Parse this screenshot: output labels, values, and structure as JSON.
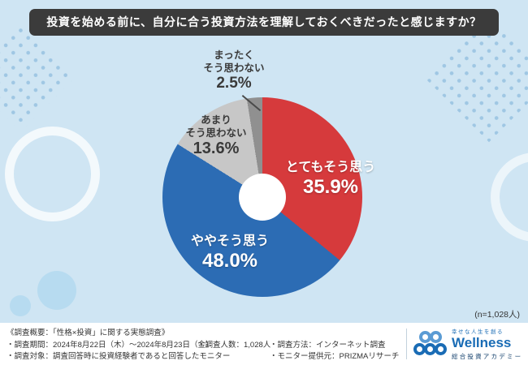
{
  "title": "投資を始める前に、自分に合う投資方法を理解しておくべきだったと感じますか？",
  "chart_data": {
    "type": "pie",
    "donut": true,
    "start_angle_deg": 0,
    "direction": "clockwise",
    "labels_on_chart": true,
    "title": "投資を始める前に、自分に合う投資方法を理解しておくべきだったと感じますか？",
    "categories": [
      "とてもそう思う",
      "ややそう思う",
      "あまりそう思わない",
      "まったくそう思わない"
    ],
    "values": [
      35.9,
      48.0,
      13.6,
      2.5
    ],
    "sample_note": "(n=1,028人)",
    "slices": [
      {
        "label": "とてもそう思う",
        "value": 35.9,
        "display": "35.9%",
        "color": "#d63a3c",
        "label_color": "#ffffff"
      },
      {
        "label": "ややそう思う",
        "value": 48.0,
        "display": "48.0%",
        "color": "#2c6cb4",
        "label_color": "#ffffff"
      },
      {
        "label": "あまり\nそう思わない",
        "value": 13.6,
        "display": "13.6%",
        "color": "#c7c7c7",
        "label_color": "#3a3a3a"
      },
      {
        "label": "まったく\nそう思わない",
        "value": 2.5,
        "display": "2.5%",
        "color": "#909090",
        "label_color": "#3a3a3a"
      }
    ]
  },
  "footer": {
    "overview": "《調査概要：「性格×投資」に関する実態調査》",
    "period": "・調査期間：2024年8月22日（木）～2024年8月23日（金）",
    "people": "・調査人数：1,028人",
    "method": "・調査方法：インターネット調査",
    "target": "・調査対象：調査回答時に投資経験者であると回答したモニター",
    "provider": "・モニター提供元：PRIZMAリサーチ"
  },
  "logo": {
    "tagline": "幸せな人生を創る",
    "name": "Wellness",
    "subtitle": "総合投資アカデミー"
  },
  "colors": {
    "background": "#cfe5f3",
    "title_box": "#3b3b3b",
    "brand_blue": "#1a6cb5"
  }
}
